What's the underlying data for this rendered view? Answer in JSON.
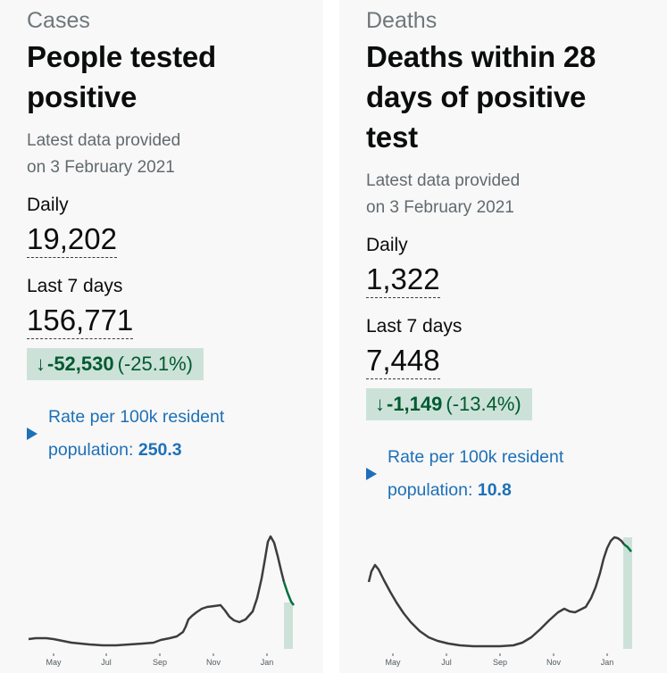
{
  "cards": [
    {
      "section": "Cases",
      "title_lines": [
        "People tested",
        "positive"
      ],
      "latest_lines": [
        "Latest data provided",
        "on 3 February 2021"
      ],
      "daily_label": "Daily",
      "daily_value": "19,202",
      "week_label": "Last 7 days",
      "week_value": "156,771",
      "change_arrow": "↓",
      "change_amount": "-52,530",
      "change_percent": "(-25.1%)",
      "rate_line1": "Rate per 100k resident",
      "rate_line2_prefix": "population:",
      "rate_value": "250.3",
      "chart_ticks": [
        "May",
        "Jul",
        "Sep",
        "Nov",
        "Jan"
      ]
    },
    {
      "section": "Deaths",
      "title_lines": [
        "Deaths within 28",
        "days of positive",
        "test"
      ],
      "latest_lines": [
        "Latest data provided",
        "on 3 February 2021"
      ],
      "daily_label": "Daily",
      "daily_value": "1,322",
      "week_label": "Last 7 days",
      "week_value": "7,448",
      "change_arrow": "↓",
      "change_amount": "-1,149",
      "change_percent": "(-13.4%)",
      "rate_line1": "Rate per 100k resident",
      "rate_line2_prefix": "population:",
      "rate_value": "10.8",
      "chart_ticks": [
        "May",
        "Jul",
        "Sep",
        "Nov",
        "Jan"
      ]
    }
  ],
  "colors": {
    "positive_change_bg": "#cce2d8",
    "positive_change_text": "#005a30",
    "link_blue": "#1d70b8",
    "line": "#3d3d3d",
    "recent_line": "#00703c"
  }
}
